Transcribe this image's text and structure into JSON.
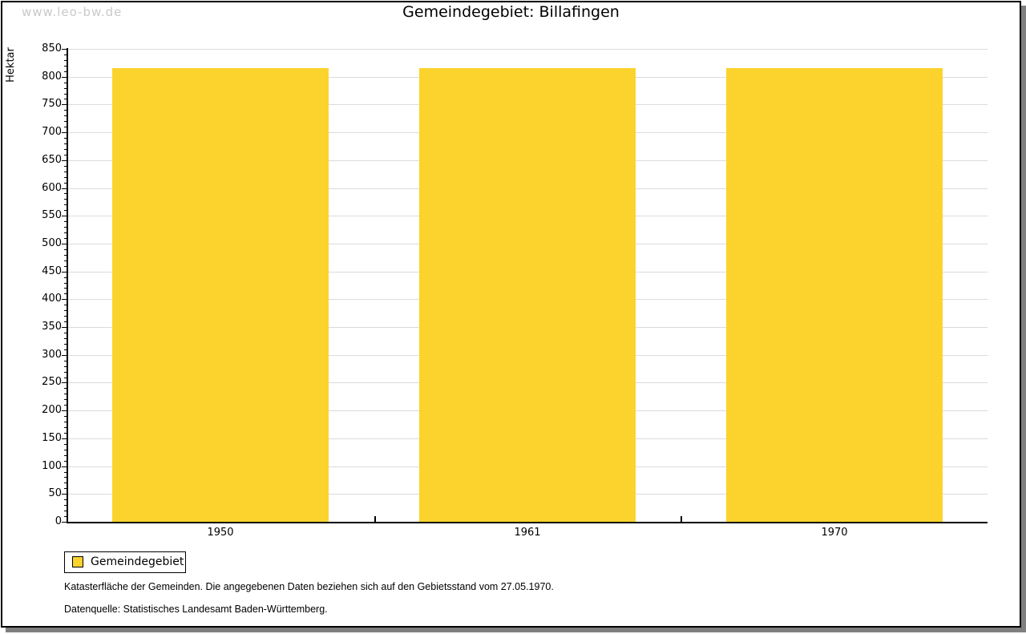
{
  "watermark": "www.leo-bw.de",
  "title": "Gemeindegebiet: Billafingen",
  "chart_data": {
    "type": "bar",
    "title": "Gemeindegebiet: Billafingen",
    "categories": [
      "1950",
      "1961",
      "1970"
    ],
    "series": [
      {
        "name": "Gemeindegebiet",
        "values": [
          815,
          815,
          815
        ]
      }
    ],
    "xlabel": "",
    "ylabel": "Hektar",
    "ylim": [
      0,
      850
    ],
    "ytick_step": 50,
    "yminor_step": 10,
    "grid": true,
    "legend_position": "bottom-left",
    "bar_color": "#FCD32D",
    "grid_color": "#DBDBDB"
  },
  "legend": {
    "items": [
      {
        "label": "Gemeindegebiet",
        "color": "#FCD32D"
      }
    ]
  },
  "footer": {
    "line1": "Katasterfläche der Gemeinden. Die angegebenen Daten beziehen sich auf den Gebietsstand vom 27.05.1970.",
    "line2": "Datenquelle: Statistisches Landesamt Baden-Württemberg."
  }
}
